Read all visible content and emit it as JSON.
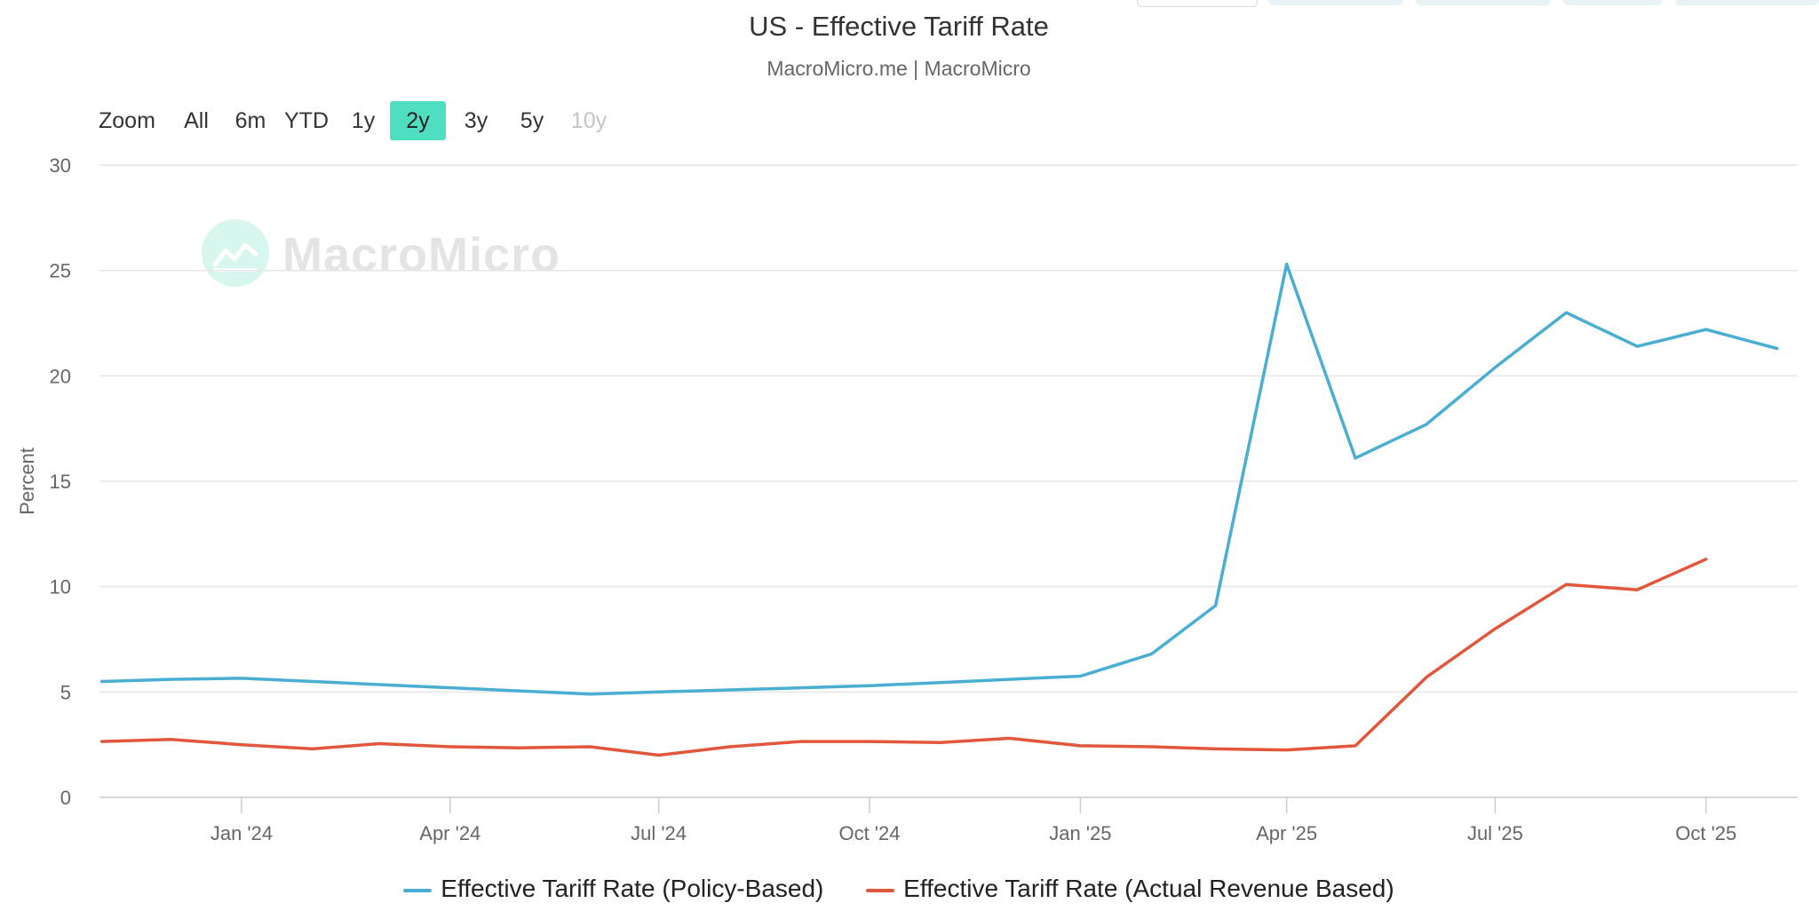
{
  "title": "US - Effective Tariff Rate",
  "subtitle": "MacroMicro.me | MacroMicro",
  "watermark": "MacroMicro",
  "zoom": {
    "label": "Zoom",
    "buttons": [
      "All",
      "6m",
      "YTD",
      "1y",
      "2y",
      "3y",
      "5y",
      "10y"
    ],
    "selected": "2y",
    "disabled": [
      "10y"
    ]
  },
  "colors": {
    "policy": "#4aaed3",
    "revenue": "#e0573c",
    "selected_button": "#4fdfc0",
    "grid": "#e6e6e6"
  },
  "chart_data": {
    "type": "line",
    "title": "US - Effective Tariff Rate",
    "subtitle": "MacroMicro.me | MacroMicro",
    "ylabel": "Percent",
    "ylim": [
      0,
      30
    ],
    "yticks": [
      0,
      5,
      10,
      15,
      20,
      25,
      30
    ],
    "xlim": [
      "2023-10-31",
      "2025-11-10"
    ],
    "xticks": [
      {
        "label": "Jan '24",
        "date": "2024-01-01"
      },
      {
        "label": "Apr '24",
        "date": "2024-04-01"
      },
      {
        "label": "Jul '24",
        "date": "2024-07-01"
      },
      {
        "label": "Oct '24",
        "date": "2024-10-01"
      },
      {
        "label": "Jan '25",
        "date": "2025-01-01"
      },
      {
        "label": "Apr '25",
        "date": "2025-04-01"
      },
      {
        "label": "Jul '25",
        "date": "2025-07-01"
      },
      {
        "label": "Oct '25",
        "date": "2025-10-01"
      }
    ],
    "grid": true,
    "legend_position": "bottom-center",
    "series": [
      {
        "name": "Effective Tariff Rate (Policy-Based)",
        "color": "#4aaed3",
        "points": [
          [
            "2023-11-01",
            5.5
          ],
          [
            "2023-12-01",
            5.6
          ],
          [
            "2024-01-01",
            5.65
          ],
          [
            "2024-02-01",
            5.5
          ],
          [
            "2024-03-01",
            5.35
          ],
          [
            "2024-04-01",
            5.2
          ],
          [
            "2024-05-01",
            5.05
          ],
          [
            "2024-06-01",
            4.9
          ],
          [
            "2024-07-01",
            5.0
          ],
          [
            "2024-08-01",
            5.1
          ],
          [
            "2024-09-01",
            5.2
          ],
          [
            "2024-10-01",
            5.3
          ],
          [
            "2024-11-01",
            5.45
          ],
          [
            "2024-12-01",
            5.6
          ],
          [
            "2025-01-01",
            5.75
          ],
          [
            "2025-02-01",
            6.8
          ],
          [
            "2025-03-01",
            9.1
          ],
          [
            "2025-04-01",
            25.3
          ],
          [
            "2025-05-01",
            16.1
          ],
          [
            "2025-06-01",
            17.7
          ],
          [
            "2025-07-01",
            20.4
          ],
          [
            "2025-08-01",
            23.0
          ],
          [
            "2025-09-01",
            21.4
          ],
          [
            "2025-10-01",
            22.2
          ],
          [
            "2025-11-01",
            21.3
          ]
        ]
      },
      {
        "name": "Effective Tariff Rate (Actual Revenue Based)",
        "color": "#e0573c",
        "points": [
          [
            "2023-11-01",
            2.65
          ],
          [
            "2023-12-01",
            2.75
          ],
          [
            "2024-01-01",
            2.5
          ],
          [
            "2024-02-01",
            2.3
          ],
          [
            "2024-03-01",
            2.55
          ],
          [
            "2024-04-01",
            2.4
          ],
          [
            "2024-05-01",
            2.35
          ],
          [
            "2024-06-01",
            2.4
          ],
          [
            "2024-07-01",
            2.0
          ],
          [
            "2024-08-01",
            2.4
          ],
          [
            "2024-09-01",
            2.65
          ],
          [
            "2024-10-01",
            2.65
          ],
          [
            "2024-11-01",
            2.6
          ],
          [
            "2024-12-01",
            2.8
          ],
          [
            "2025-01-01",
            2.45
          ],
          [
            "2025-02-01",
            2.4
          ],
          [
            "2025-03-01",
            2.3
          ],
          [
            "2025-04-01",
            2.25
          ],
          [
            "2025-05-01",
            2.45
          ],
          [
            "2025-06-01",
            5.7
          ],
          [
            "2025-07-01",
            8.0
          ],
          [
            "2025-08-01",
            10.1
          ],
          [
            "2025-09-01",
            9.85
          ],
          [
            "2025-10-01",
            11.3
          ]
        ]
      }
    ]
  }
}
